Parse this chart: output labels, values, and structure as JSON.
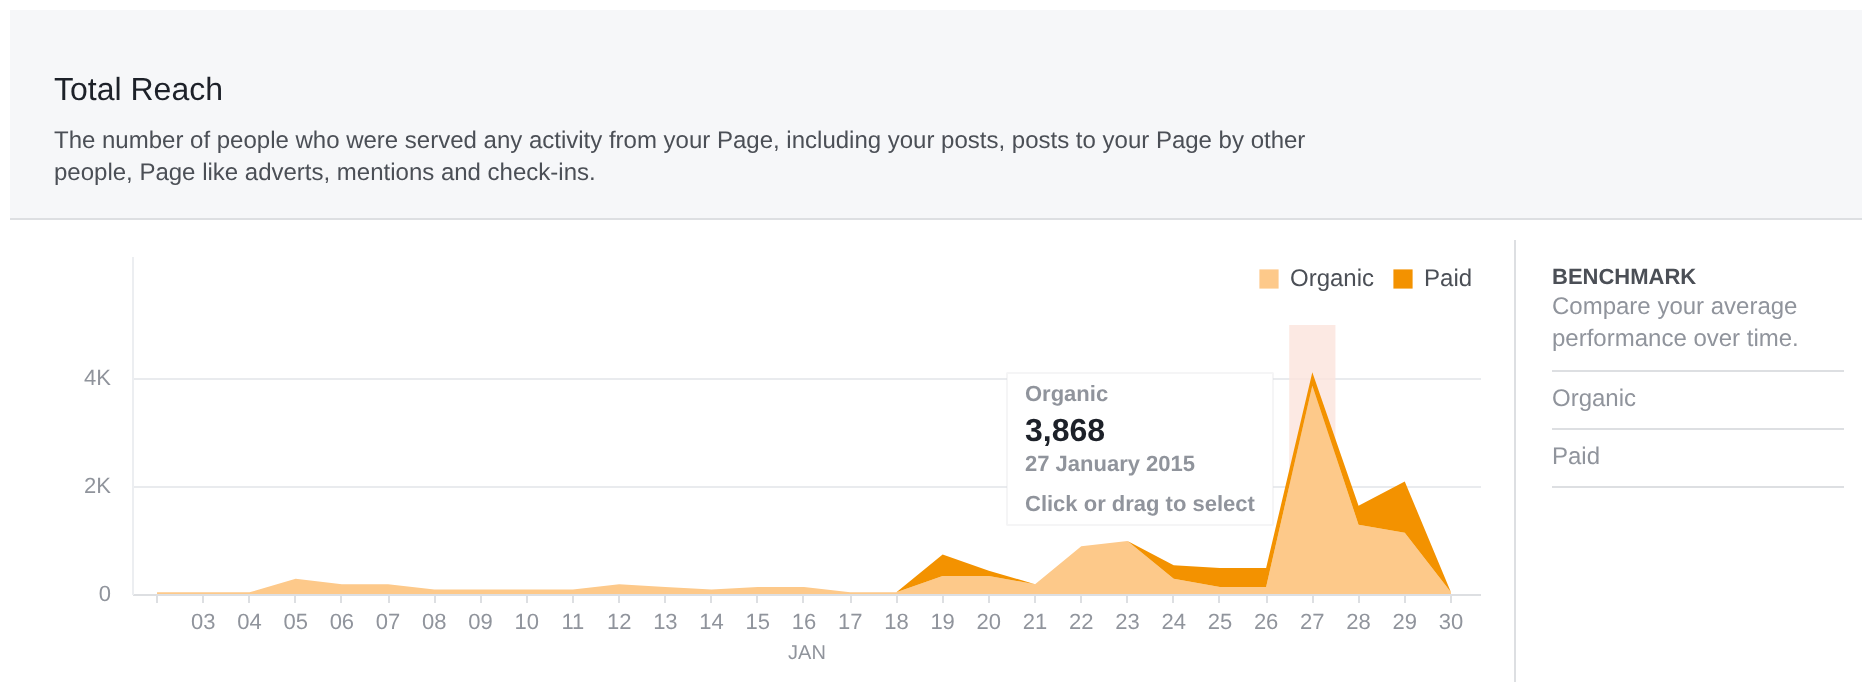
{
  "chart_data": {
    "type": "area",
    "title": "Total Reach",
    "subtitle": "The number of people who were served any activity from your Page, including your posts, posts to your Page by other people, Page like adverts, mentions and check-ins.",
    "categories": [
      null,
      "03",
      "04",
      "05",
      "06",
      "07",
      "08",
      "09",
      "10",
      "11",
      "12",
      "13",
      "14",
      "15",
      "16",
      "17",
      "18",
      "19",
      "20",
      "21",
      "22",
      "23",
      "24",
      "25",
      "26",
      "27",
      "28",
      "29",
      "30"
    ],
    "stacked": true,
    "series": [
      {
        "name": "Organic",
        "color": "#fdc98a",
        "values": [
          50,
          50,
          50,
          300,
          200,
          200,
          100,
          100,
          100,
          100,
          200,
          150,
          100,
          150,
          150,
          50,
          50,
          350,
          350,
          200,
          900,
          1000,
          300,
          150,
          150,
          3868,
          1300,
          1150,
          50
        ]
      },
      {
        "name": "Paid",
        "color": "#f39200",
        "values": [
          0,
          0,
          0,
          0,
          0,
          0,
          0,
          0,
          0,
          0,
          0,
          0,
          0,
          0,
          0,
          0,
          0,
          400,
          100,
          0,
          0,
          0,
          250,
          350,
          350,
          250,
          350,
          950,
          0
        ]
      }
    ],
    "xlabel": "JAN",
    "ylim": [
      0,
      6250
    ],
    "yticks": [
      0,
      {
        "value": 2000,
        "label": "2K"
      },
      {
        "value": 4000,
        "label": "4K"
      }
    ],
    "grid": "y",
    "legend": "top right",
    "bands": [
      {
        "axis": "x",
        "from": "27",
        "to": "27",
        "color": "#fbe3dc"
      }
    ],
    "annotations": [
      "Organic",
      "3,868",
      "27 January 2015",
      "Click or drag to select",
      "BENCHMARK",
      "Compare your average performance over time.",
      "Organic",
      "Paid"
    ]
  }
}
